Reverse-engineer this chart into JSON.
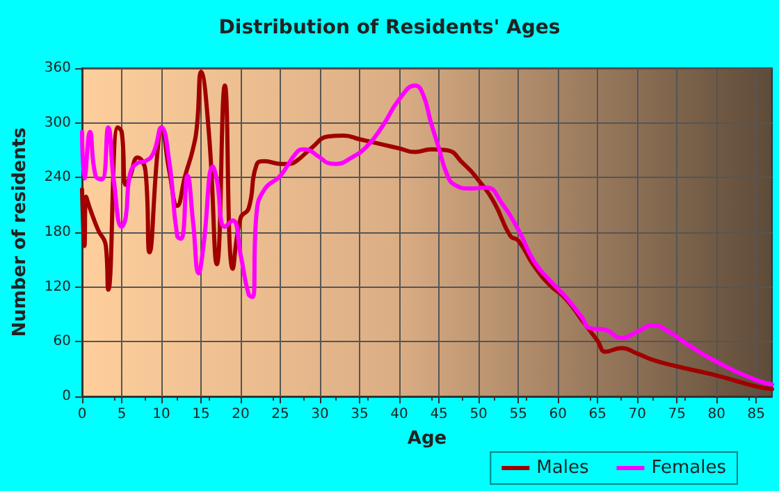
{
  "chart_data": {
    "type": "line",
    "title": "Distribution of Residents' Ages",
    "xlabel": "Age",
    "ylabel": "Number of residents",
    "series": [
      {
        "name": "Males",
        "color": "#a00000",
        "x": [
          0,
          0.3,
          0.5,
          1,
          2,
          3,
          3.3,
          4.5,
          5,
          5.5,
          6,
          7,
          8,
          8.5,
          9.5,
          10,
          11,
          12,
          13,
          14,
          14.5,
          15,
          16,
          17,
          18,
          19,
          20,
          21,
          22,
          23,
          25,
          26,
          27,
          29,
          31,
          33,
          35,
          38,
          40,
          42,
          44,
          46,
          48,
          50,
          52,
          54,
          55,
          57,
          59,
          61,
          63,
          65,
          66,
          68,
          70,
          72,
          75,
          80,
          85,
          87
        ],
        "values": [
          227,
          165,
          219,
          206,
          183,
          165,
          117,
          295,
          290,
          232,
          240,
          262,
          247,
          158,
          267,
          295,
          247,
          209,
          242,
          272,
          298,
          356,
          288,
          145,
          341,
          140,
          196,
          206,
          254,
          258,
          255,
          255,
          258,
          273,
          285,
          286,
          282,
          276,
          272,
          268,
          271,
          270,
          256,
          237,
          212,
          176,
          171,
          143,
          122,
          107,
          84,
          61,
          49,
          53,
          47,
          40,
          33,
          23,
          11,
          8
        ]
      },
      {
        "name": "Females",
        "color": "#ff00ff",
        "x": [
          0,
          0.3,
          1,
          1.7,
          2.5,
          3.3,
          4,
          5,
          5.5,
          6,
          7,
          8,
          9,
          10,
          11,
          12,
          12.5,
          13.3,
          14,
          14.7,
          15.3,
          16.5,
          17,
          18,
          19,
          20,
          21,
          21.5,
          22,
          23,
          25,
          27,
          28,
          30,
          31,
          32,
          34,
          36,
          38,
          40,
          42,
          43,
          44,
          45,
          46,
          47,
          49,
          51,
          53,
          55,
          57,
          59,
          61,
          63,
          64,
          66,
          68,
          70,
          72,
          74,
          76,
          80,
          85,
          87
        ],
        "values": [
          290,
          239,
          290,
          242,
          238,
          295,
          237,
          186,
          196,
          242,
          256,
          258,
          267,
          295,
          257,
          176,
          173,
          242,
          191,
          135,
          165,
          252,
          237,
          186,
          193,
          155,
          112,
          109,
          201,
          227,
          242,
          267,
          271,
          262,
          256,
          255,
          262,
          275,
          298,
          326,
          341,
          331,
          300,
          272,
          244,
          232,
          228,
          229,
          211,
          183,
          148,
          127,
          109,
          87,
          75,
          73,
          64,
          71,
          78,
          71,
          59,
          38,
          18,
          13
        ]
      }
    ],
    "xlim": [
      0,
      87
    ],
    "xticks": [
      0,
      5,
      10,
      15,
      20,
      25,
      30,
      35,
      40,
      45,
      50,
      55,
      60,
      65,
      70,
      75,
      80,
      85
    ],
    "ylim": [
      0,
      360
    ],
    "yticks": [
      0,
      60,
      120,
      180,
      240,
      300,
      360
    ],
    "grid": true,
    "legend": "bottom right",
    "marker": "none",
    "line_style": "solid"
  }
}
